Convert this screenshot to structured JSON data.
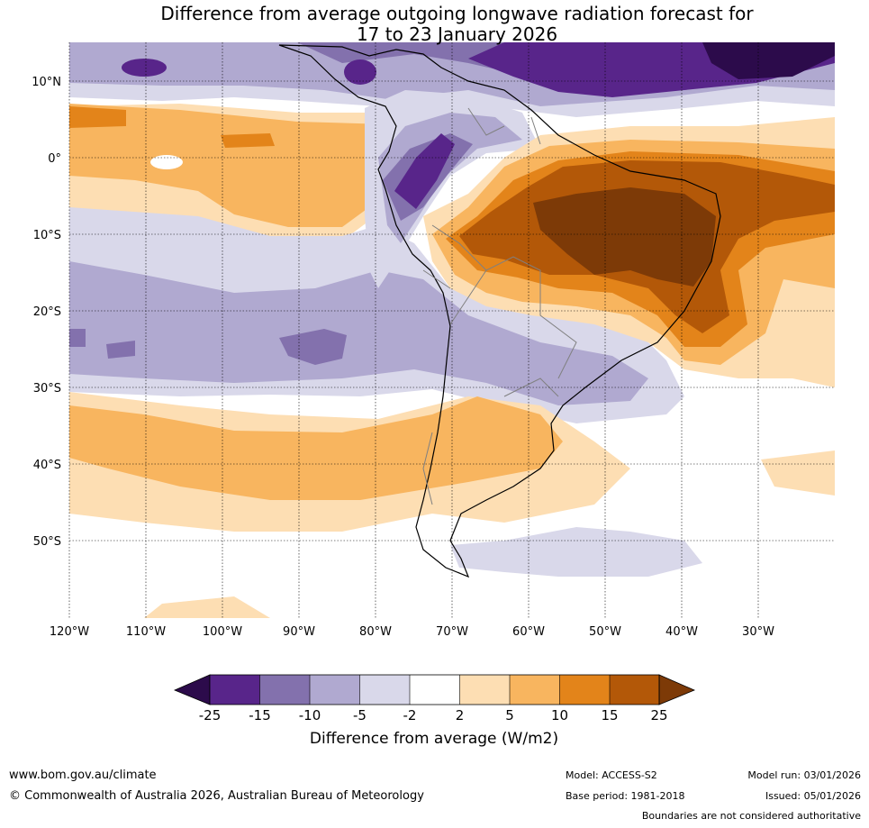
{
  "title": {
    "line1": "Difference from average outgoing longwave radiation forecast for",
    "line2": "17 to 23 January 2026"
  },
  "map": {
    "lat_labels": [
      "10°N",
      "0°",
      "10°S",
      "20°S",
      "30°S",
      "40°S",
      "50°S"
    ],
    "lon_labels": [
      "120°W",
      "110°W",
      "100°W",
      "90°W",
      "80°W",
      "70°W",
      "60°W",
      "50°W",
      "40°W",
      "30°W"
    ]
  },
  "legend": {
    "ticks": [
      "-25",
      "-15",
      "-10",
      "-5",
      "-2",
      "2",
      "5",
      "10",
      "15",
      "25"
    ],
    "label": "Difference from average (W/m2)",
    "colors": [
      "#2c0b4b",
      "#58258a",
      "#8371ad",
      "#b0a9d0",
      "#d9d8ea",
      "#ffffff",
      "#fddeb3",
      "#f8b55f",
      "#e3841a",
      "#b35808",
      "#7d3a07"
    ]
  },
  "footer": {
    "website": "www.bom.gov.au/climate",
    "copyright": "© Commonwealth of Australia 2026, Australian Bureau of Meteorology",
    "model": "Model: ACCESS-S2",
    "base_period": "Base period: 1981-2018",
    "model_run": "Model run: 03/01/2026",
    "issued": "Issued: 05/01/2026",
    "disclaimer": "Boundaries are not considered authoritative"
  }
}
